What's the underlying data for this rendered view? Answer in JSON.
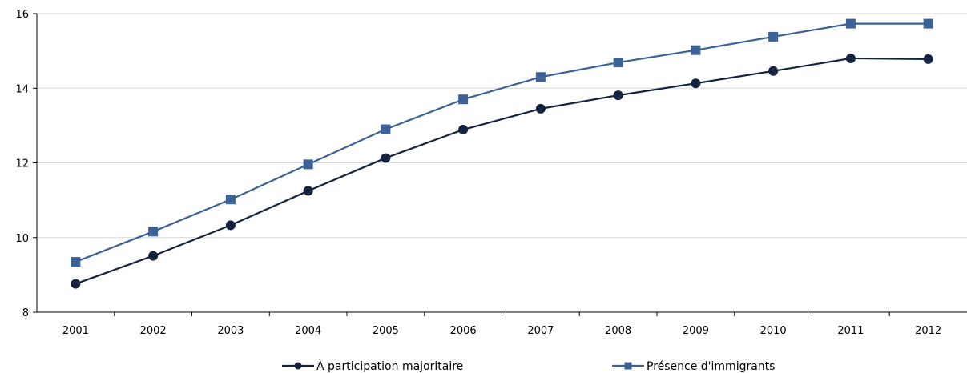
{
  "chart_data": {
    "type": "line",
    "x": [
      "2001",
      "2002",
      "2003",
      "2004",
      "2005",
      "2006",
      "2007",
      "2008",
      "2009",
      "2010",
      "2011",
      "2012"
    ],
    "series": [
      {
        "name": "À participation majoritaire",
        "color": "#14233f",
        "marker": "circle",
        "values": [
          8.76,
          9.51,
          10.33,
          11.25,
          12.13,
          12.89,
          13.45,
          13.81,
          14.13,
          14.46,
          14.8,
          14.78
        ]
      },
      {
        "name": "Présence d'immigrants",
        "color": "#3a6296",
        "marker": "square",
        "values": [
          9.35,
          10.16,
          11.02,
          11.96,
          12.9,
          13.7,
          14.3,
          14.69,
          15.02,
          15.38,
          15.73,
          15.73
        ]
      }
    ],
    "xlabel": "",
    "ylabel": "",
    "ylim": [
      8,
      16
    ],
    "yticks": [
      "8",
      "10",
      "12",
      "14",
      "16"
    ],
    "grid": true,
    "legend": "bottom"
  }
}
